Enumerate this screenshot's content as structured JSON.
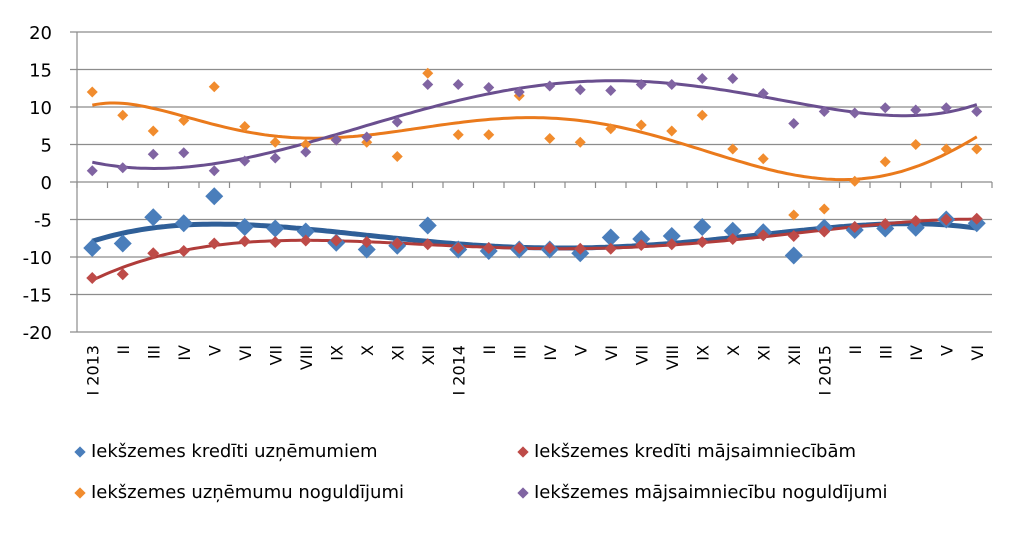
{
  "chart_data": {
    "type": "scatter",
    "trendline": "polynomial",
    "categories": [
      "I 2013",
      "II",
      "III",
      "IV",
      "V",
      "VI",
      "VII",
      "VIII",
      "IX",
      "X",
      "XI",
      "XII",
      "I 2014",
      "II",
      "III",
      "IV",
      "V",
      "VI",
      "VII",
      "VIII",
      "IX",
      "X",
      "XI",
      "XII",
      "I 2015",
      "II",
      "III",
      "IV",
      "V",
      "VI"
    ],
    "ylim": [
      -20,
      20
    ],
    "yticks": [
      20,
      15,
      10,
      5,
      0,
      -5,
      -10,
      -15,
      -20
    ],
    "grid": true,
    "legend_position": "bottom",
    "series": [
      {
        "name": "Iekšzemes kredīti uzņēmumiem",
        "color": "#4a7ebb",
        "trend_color": "#2f5f98",
        "values": [
          -8.8,
          -8.2,
          -4.7,
          -5.5,
          -1.9,
          -6.0,
          -6.2,
          -6.6,
          -8.1,
          -9.0,
          -8.5,
          -5.8,
          -9.0,
          -9.2,
          -9.0,
          -9.0,
          -9.5,
          -7.4,
          -7.6,
          -7.2,
          -6.0,
          -6.5,
          -6.7,
          -9.8,
          -6.1,
          -6.4,
          -6.2,
          -6.1,
          -5.0,
          -5.5
        ]
      },
      {
        "name": "Iekšzemes kredīti mājsaimniecībām",
        "color": "#be4b48",
        "trend_color": "#b03c3a",
        "values": [
          -12.8,
          -12.3,
          -9.5,
          -9.2,
          -8.2,
          -7.9,
          -8.0,
          -7.8,
          -7.8,
          -8.0,
          -8.2,
          -8.3,
          -8.8,
          -8.8,
          -8.8,
          -8.8,
          -8.9,
          -8.9,
          -8.4,
          -8.3,
          -8.0,
          -7.6,
          -7.1,
          -7.2,
          -6.6,
          -6.0,
          -5.6,
          -5.2,
          -5.0,
          -4.9
        ]
      },
      {
        "name": "Iekšzemes uzņēmumu noguldījumi",
        "color": "#f18c2e",
        "trend_color": "#ea7a1c",
        "values": [
          12.0,
          8.9,
          6.8,
          8.2,
          12.7,
          7.4,
          5.3,
          5.0,
          5.6,
          5.3,
          3.4,
          14.5,
          6.3,
          6.3,
          11.5,
          5.8,
          5.3,
          7.1,
          7.6,
          6.8,
          8.9,
          4.4,
          3.1,
          -4.4,
          -3.6,
          0.1,
          2.7,
          5.0,
          4.4,
          4.4
        ]
      },
      {
        "name": "Iekšzemes mājsaimniecību noguldījumi",
        "color": "#8064a2",
        "trend_color": "#6a4f8f",
        "values": [
          1.5,
          1.9,
          3.7,
          3.9,
          1.5,
          2.8,
          3.2,
          4.0,
          5.6,
          6.0,
          8.0,
          13.0,
          13.0,
          12.6,
          12.0,
          12.8,
          12.3,
          12.2,
          13.0,
          13.0,
          13.8,
          13.8,
          11.8,
          7.8,
          9.4,
          9.2,
          9.9,
          9.6,
          9.9,
          9.4
        ]
      }
    ]
  }
}
